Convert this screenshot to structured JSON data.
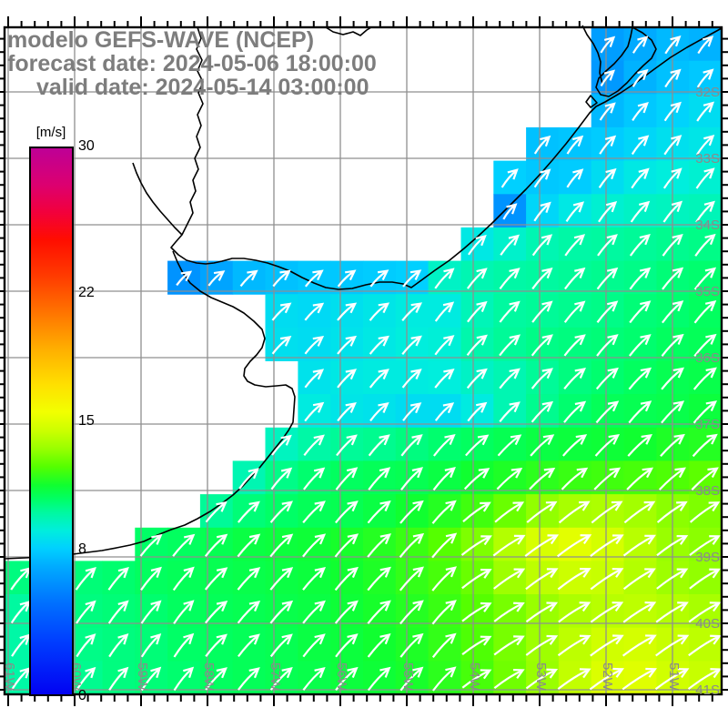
{
  "title": {
    "line1": "modelo GEFS-WAVE (NCEP)",
    "line2": "forecast date: 2024-05-06 18:00:00",
    "line3": "valid date: 2024-05-14 03:00:00",
    "color": "#7d7d7d"
  },
  "colorbar": {
    "unit_label": "[m/s]",
    "min": 0,
    "max": 30,
    "ticks": [
      {
        "label": "30",
        "value": 30
      },
      {
        "label": "22",
        "value": 22
      },
      {
        "label": "15",
        "value": 15
      },
      {
        "label": "8",
        "value": 8
      },
      {
        "label": "0",
        "value": 0
      }
    ],
    "stops": [
      [
        0,
        "#0202F2"
      ],
      [
        3,
        "#0040FF"
      ],
      [
        5,
        "#0070FF"
      ],
      [
        7,
        "#00AAFF"
      ],
      [
        8,
        "#00D0FF"
      ],
      [
        9,
        "#00EEDD"
      ],
      [
        10,
        "#00F9A0"
      ],
      [
        10.7,
        "#00FF66"
      ],
      [
        11.5,
        "#10FF30"
      ],
      [
        12.5,
        "#55FF00"
      ],
      [
        13.5,
        "#99FF00"
      ],
      [
        14.5,
        "#CCFF00"
      ],
      [
        15.5,
        "#F2FF00"
      ],
      [
        17,
        "#FFE000"
      ],
      [
        19,
        "#FFAE00"
      ],
      [
        21,
        "#FF7300"
      ],
      [
        23,
        "#FF3A00"
      ],
      [
        25,
        "#FF0D00"
      ],
      [
        26.5,
        "#F2003C"
      ],
      [
        28,
        "#DC0070"
      ],
      [
        30,
        "#BE0096"
      ]
    ]
  },
  "map": {
    "lat_labels": [
      "32S",
      "33S",
      "34S",
      "35S",
      "36S",
      "37S",
      "38S",
      "39S",
      "40S",
      "41S"
    ],
    "lon_labels": [
      "61W",
      "60W",
      "59W",
      "58W",
      "57W",
      "56W",
      "55W",
      "54W",
      "53W",
      "52W",
      "51W"
    ],
    "grid_color": "#8f8f8f",
    "label_color": "#8a8a8a",
    "coast_color": "#000000",
    "frame_color": "#000000",
    "arrow_color": "#ffffff",
    "coast_paths": [
      "M793,31 L773,42 755,52 737,63 719,76 700,90 682,102 665,112 655,117 648,124 636,140 622,158 607,176 593,192 578,208 566,220 556,230 541,245 526,259 510,273 494,286 478,297 463,308 452,316 443,312 431,310 417,310 402,313 387,317 372,318 358,316 345,311 332,305 319,298 306,293 294,289 281,286 268,284 255,284 244,287 235,289 226,290 216,289 205,286 196,280 188,272 193,266 200,258 206,246 212,234 209,222 215,210 212,198 218,186 214,174 220,162 216,150 221,138 217,126 223,114 218,102 223,90 217,78 222,66 216,54 221,42 217,30",
      "M190,276 L195,288 201,300 209,311 220,320 232,327 244,332 256,337 268,344 279,353 288,362 291,372 288,382 282,390 275,397 269,405 268,413 272,419 280,423 292,425 304,424 314,423 321,427 324,436 323,450 322,464 317,473 310,483 302,493 294,503 286,513 277,523 267,534 256,544 244,553 231,562 217,570 203,577 188,582 173,588 158,595 143,599 128,602 112,605 96,607 80,609 63,611 46,612 28,613 5,614",
      "M200,258 L192,250 184,241 176,232 168,222 161,212 155,201 150,190 146,179",
      "M695,30 L706,36 716,44 721,54 716,64 707,72 698,81 689,91 679,100 669,106 660,104 655,96 658,86 666,78 675,70 683,61 690,51 693,40 Z",
      "M640,28 L645,38 652,48 657,58 660,68 659,80 662,92",
      "M649,105 L644,112 649,118 656,113 Z",
      "M358,30 L366,35 377,38 388,35 396,39 403,33 408,30"
    ]
  },
  "chart_data": {
    "type": "heatmap",
    "units": "m/s",
    "description": "Wind speed shading with white wind-direction vectors over the SW Atlantic / Rio de la Plata",
    "cell_deg": 0.5,
    "lon_range": [
      "61W",
      "50.3W"
    ],
    "lat_range": [
      "31S",
      "41S"
    ],
    "speeds": [
      [
        null,
        null,
        null,
        null,
        null,
        null,
        null,
        null,
        null,
        null,
        null,
        null,
        null,
        null,
        null,
        null,
        null,
        null,
        6.6,
        7.0,
        7.4,
        7.2
      ],
      [
        null,
        null,
        null,
        null,
        null,
        null,
        null,
        null,
        null,
        null,
        null,
        null,
        null,
        null,
        null,
        null,
        null,
        null,
        6.4,
        7.2,
        7.6,
        7.8
      ],
      [
        null,
        null,
        null,
        null,
        null,
        null,
        null,
        null,
        null,
        null,
        null,
        null,
        null,
        null,
        null,
        null,
        null,
        null,
        7.4,
        7.8,
        8.1,
        8.4
      ],
      [
        null,
        null,
        null,
        null,
        null,
        null,
        null,
        null,
        null,
        null,
        null,
        null,
        null,
        null,
        null,
        null,
        7.6,
        7.7,
        7.9,
        8.2,
        8.5,
        8.7
      ],
      [
        null,
        null,
        null,
        null,
        null,
        null,
        null,
        null,
        null,
        null,
        null,
        null,
        null,
        null,
        null,
        8.0,
        7.8,
        7.9,
        8.4,
        8.8,
        9.0,
        9.2
      ],
      [
        null,
        null,
        null,
        null,
        null,
        null,
        null,
        null,
        null,
        null,
        null,
        null,
        null,
        null,
        null,
        6.2,
        8.2,
        8.8,
        9.2,
        9.4,
        9.5,
        9.6
      ],
      [
        null,
        null,
        null,
        null,
        null,
        null,
        null,
        null,
        null,
        null,
        null,
        null,
        null,
        null,
        8.8,
        9.3,
        9.7,
        9.9,
        10.0,
        10.1,
        10.2,
        10.3
      ],
      [
        null,
        null,
        null,
        null,
        null,
        6.2,
        6.8,
        7.4,
        7.6,
        7.8,
        7.8,
        7.9,
        8.0,
        9.4,
        9.7,
        9.9,
        10.0,
        10.1,
        10.2,
        10.3,
        10.5,
        10.6
      ],
      [
        null,
        null,
        null,
        null,
        null,
        null,
        null,
        null,
        8.4,
        8.3,
        8.5,
        8.7,
        8.9,
        8.9,
        9.6,
        10.0,
        10.1,
        10.2,
        10.3,
        10.5,
        10.6,
        10.8
      ],
      [
        null,
        null,
        null,
        null,
        null,
        null,
        null,
        null,
        8.5,
        8.4,
        8.6,
        8.8,
        9.0,
        9.1,
        9.8,
        10.1,
        10.3,
        10.4,
        10.5,
        10.6,
        10.8,
        10.9
      ],
      [
        null,
        null,
        null,
        null,
        null,
        null,
        null,
        null,
        null,
        8.6,
        8.8,
        8.9,
        8.9,
        9.0,
        9.4,
        9.7,
        10.1,
        10.4,
        10.6,
        10.8,
        11.0,
        11.1
      ],
      [
        null,
        null,
        null,
        null,
        null,
        null,
        null,
        null,
        null,
        8.9,
        8.7,
        8.6,
        8.4,
        8.4,
        8.9,
        9.7,
        10.2,
        10.6,
        10.9,
        11.0,
        11.1,
        11.3
      ],
      [
        null,
        null,
        null,
        null,
        null,
        null,
        null,
        null,
        9.5,
        9.9,
        10.1,
        10.2,
        10.4,
        10.6,
        10.8,
        11.0,
        11.2,
        11.3,
        11.4,
        11.5,
        11.7,
        11.8
      ],
      [
        null,
        null,
        null,
        null,
        null,
        null,
        null,
        9.7,
        10.3,
        10.6,
        10.8,
        10.9,
        11.0,
        11.2,
        11.5,
        11.7,
        11.9,
        12.1,
        12.2,
        12.3,
        12.4,
        12.6
      ],
      [
        null,
        null,
        null,
        null,
        null,
        null,
        10.1,
        10.5,
        10.7,
        10.9,
        11.0,
        11.2,
        11.5,
        11.8,
        12.2,
        12.8,
        13.4,
        13.8,
        13.9,
        13.7,
        13.3,
        13.1
      ],
      [
        null,
        null,
        null,
        null,
        10.7,
        10.8,
        11.0,
        11.2,
        11.3,
        11.4,
        11.6,
        11.8,
        12.1,
        12.5,
        13.1,
        14.0,
        14.8,
        15.1,
        14.7,
        14.1,
        13.5,
        13.3
      ],
      [
        10.4,
        10.4,
        10.5,
        10.6,
        10.8,
        10.9,
        11.0,
        11.1,
        11.2,
        11.3,
        11.5,
        11.7,
        12.0,
        12.3,
        12.8,
        13.6,
        14.2,
        14.5,
        14.4,
        14.0,
        13.6,
        13.4
      ],
      [
        10.0,
        10.2,
        10.4,
        10.5,
        10.6,
        10.8,
        10.9,
        11.0,
        11.1,
        11.2,
        11.4,
        11.6,
        11.8,
        12.1,
        12.5,
        13.0,
        13.5,
        13.9,
        14.1,
        14.2,
        14.0,
        13.8
      ],
      [
        9.9,
        10.1,
        10.3,
        10.4,
        10.5,
        10.7,
        10.8,
        10.9,
        11.0,
        11.2,
        11.3,
        11.5,
        11.7,
        12.0,
        12.4,
        13.0,
        13.6,
        14.2,
        14.6,
        14.7,
        14.4,
        14.2
      ],
      [
        9.9,
        10.0,
        10.2,
        10.4,
        10.5,
        10.6,
        10.8,
        10.9,
        11.0,
        11.1,
        11.3,
        11.4,
        11.6,
        11.9,
        12.3,
        12.9,
        13.5,
        14.3,
        14.9,
        15.0,
        14.6,
        14.4
      ]
    ],
    "arrow_dirs_deg": [
      [
        null,
        null,
        null,
        null,
        null,
        null,
        null,
        null,
        null,
        null,
        null,
        null,
        null,
        null,
        null,
        null,
        null,
        null,
        46,
        46,
        46,
        46
      ],
      [
        null,
        null,
        null,
        null,
        null,
        null,
        null,
        null,
        null,
        null,
        null,
        null,
        null,
        null,
        null,
        null,
        null,
        null,
        46,
        46,
        46,
        46
      ],
      [
        null,
        null,
        null,
        null,
        null,
        null,
        null,
        null,
        null,
        null,
        null,
        null,
        null,
        null,
        null,
        null,
        null,
        null,
        46,
        46,
        46,
        46
      ],
      [
        null,
        null,
        null,
        null,
        null,
        null,
        null,
        null,
        null,
        null,
        null,
        null,
        null,
        null,
        null,
        null,
        46,
        46,
        46,
        46,
        46,
        46
      ],
      [
        null,
        null,
        null,
        null,
        null,
        null,
        null,
        null,
        null,
        null,
        null,
        null,
        null,
        null,
        null,
        46,
        46,
        46,
        46,
        46,
        46,
        46
      ],
      [
        null,
        null,
        null,
        null,
        null,
        null,
        null,
        null,
        null,
        null,
        null,
        null,
        null,
        null,
        null,
        46,
        46,
        46,
        46,
        46,
        46,
        46
      ],
      [
        null,
        null,
        null,
        null,
        null,
        null,
        null,
        null,
        null,
        null,
        null,
        null,
        null,
        null,
        45,
        45,
        45,
        45,
        45,
        45,
        45,
        45
      ],
      [
        null,
        null,
        null,
        null,
        null,
        40,
        40,
        40,
        40,
        40,
        40,
        40,
        40,
        44,
        44,
        44,
        44,
        44,
        44,
        44,
        44,
        44
      ],
      [
        null,
        null,
        null,
        null,
        null,
        null,
        null,
        null,
        40,
        40,
        40,
        40,
        40,
        44,
        44,
        44,
        44,
        44,
        44,
        44,
        44,
        44
      ],
      [
        null,
        null,
        null,
        null,
        null,
        null,
        null,
        null,
        41,
        41,
        41,
        41,
        41,
        43,
        43,
        43,
        43,
        43,
        43,
        43,
        43,
        43
      ],
      [
        null,
        null,
        null,
        null,
        null,
        null,
        null,
        null,
        null,
        42,
        42,
        42,
        42,
        42,
        42,
        42,
        42,
        42,
        42,
        42,
        42,
        42
      ],
      [
        null,
        null,
        null,
        null,
        null,
        null,
        null,
        null,
        null,
        42,
        42,
        42,
        42,
        42,
        42,
        42,
        42,
        42,
        42,
        42,
        42,
        42
      ],
      [
        null,
        null,
        null,
        null,
        null,
        null,
        null,
        null,
        43,
        43,
        43,
        43,
        43,
        43,
        40,
        40,
        40,
        40,
        40,
        40,
        40,
        40
      ],
      [
        null,
        null,
        null,
        null,
        null,
        null,
        null,
        44,
        44,
        44,
        44,
        44,
        44,
        44,
        38,
        38,
        38,
        38,
        38,
        38,
        38,
        38
      ],
      [
        null,
        null,
        null,
        null,
        null,
        null,
        42,
        42,
        42,
        42,
        42,
        42,
        42,
        42,
        33,
        33,
        33,
        33,
        33,
        33,
        33,
        33
      ],
      [
        null,
        null,
        null,
        null,
        43,
        43,
        43,
        43,
        43,
        43,
        43,
        43,
        43,
        43,
        31,
        31,
        31,
        31,
        31,
        31,
        31,
        31
      ],
      [
        46,
        46,
        46,
        46,
        46,
        46,
        43,
        43,
        43,
        43,
        43,
        43,
        43,
        43,
        31,
        31,
        31,
        31,
        31,
        31,
        31,
        31
      ],
      [
        47,
        47,
        47,
        47,
        47,
        47,
        43,
        43,
        43,
        43,
        43,
        43,
        43,
        43,
        30,
        30,
        30,
        30,
        30,
        30,
        30,
        30
      ],
      [
        48,
        48,
        48,
        48,
        48,
        48,
        44,
        44,
        44,
        44,
        44,
        44,
        44,
        44,
        30,
        30,
        30,
        30,
        30,
        30,
        30,
        30
      ],
      [
        48,
        48,
        48,
        48,
        48,
        48,
        44,
        44,
        44,
        44,
        44,
        44,
        44,
        44,
        30,
        30,
        30,
        30,
        30,
        30,
        30,
        30
      ]
    ]
  }
}
